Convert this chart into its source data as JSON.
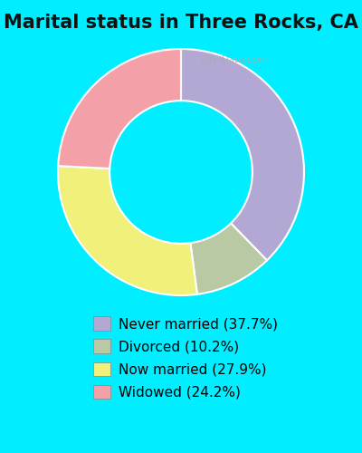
{
  "title": "Marital status in Three Rocks, CA",
  "slices": [
    37.7,
    10.2,
    27.9,
    24.2
  ],
  "labels": [
    "Never married (37.7%)",
    "Divorced (10.2%)",
    "Now married (27.9%)",
    "Widowed (24.2%)"
  ],
  "colors": [
    "#b3a8d4",
    "#b8c9a3",
    "#f0f07a",
    "#f4a0a8"
  ],
  "background_color": "#00eeff",
  "chart_bg_color": "#d6ede0",
  "title_fontsize": 15,
  "legend_fontsize": 11,
  "watermark": "City-Data.com",
  "start_angle": 90
}
